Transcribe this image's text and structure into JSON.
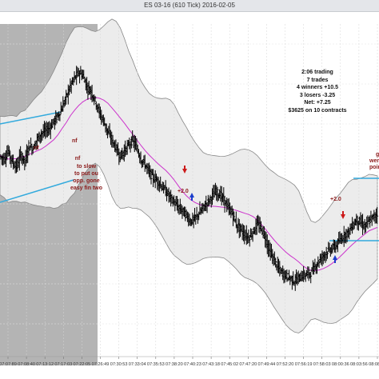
{
  "window": {
    "title": "ES 03-16 (610 Tick)  2016-02-05"
  },
  "colors": {
    "session_shade": "#b4b4b4",
    "band_fill": "#ececec",
    "band_edge": "#888888",
    "ma_line": "#cc33cc",
    "trend_line": "#33aadd",
    "annotation": "#8b1a1a",
    "up_arrow": "#1a3dcc",
    "down_arrow": "#cc1a1a",
    "bar": "#000000"
  },
  "stats": {
    "lines": [
      "2:06 trading",
      "7 trades",
      "4 winners +10.5",
      "3 losers -3.25",
      "Net: +7.25",
      "$3625 on 10 contracts"
    ]
  },
  "annotations": {
    "nf_1": "nf",
    "nf_2": "nf",
    "note_lines": [
      "to slow",
      "to put ou",
      "opp. gone",
      "easy fin two"
    ],
    "plus_a": "+2.0",
    "plus_b": "+2.0",
    "right_lines": [
      "g",
      "wen",
      "poin"
    ]
  },
  "xaxis": {
    "ticks": [
      "07:07:89",
      "07:08:40",
      "07:13:12",
      "07:17:03",
      "07:22:05",
      "07:26:49",
      "07:30:53",
      "07:33:04",
      "07:35:53",
      "07:38:20",
      "07:40:23",
      "07:43:18",
      "07:45:02",
      "07:47:20",
      "07:49:44",
      "07:52:20",
      "07:56:19",
      "07:58:03",
      "08:00:36",
      "08:03:56",
      "08:08:09"
    ]
  },
  "chart_data": {
    "type": "ohlc",
    "instrument": "ES 03-16",
    "bar_type": "610 Tick",
    "date": "2016-02-05",
    "series": [
      {
        "values": [
          100,
          98,
          104,
          96,
          92,
          101,
          96,
          108,
          106,
          113,
          117,
          119,
          121,
          126,
          130,
          136,
          144,
          152,
          158,
          162,
          160,
          151,
          148,
          141,
          132,
          126,
          118,
          112,
          106,
          100,
          104,
          108,
          112,
          106,
          98,
          94,
          88,
          84,
          82,
          78,
          74,
          70,
          66,
          62,
          60,
          56,
          52,
          54,
          58,
          62,
          66,
          70,
          74,
          72,
          68,
          62,
          58,
          50,
          46,
          42,
          40,
          44,
          50,
          47,
          40,
          30,
          24,
          18,
          14,
          12,
          10,
          8,
          10,
          12,
          13,
          14,
          19,
          23,
          27,
          30,
          32,
          34,
          38,
          42,
          44,
          49,
          53,
          51,
          48,
          52,
          55,
          58
        ]
      }
    ]
  }
}
